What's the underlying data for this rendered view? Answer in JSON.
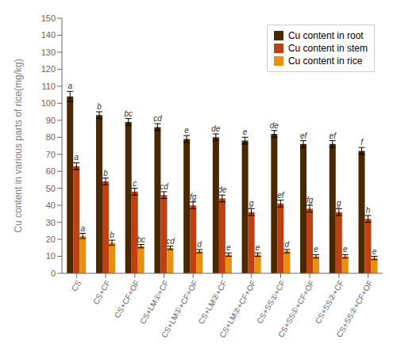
{
  "chart_data": {
    "type": "bar",
    "categories": [
      "CS",
      "CS+CF",
      "CS+CF+OF",
      "CS+LM①+CF",
      "CS+LM①+CF+OF",
      "CS+LM②+CF",
      "CS+LM②+CF+OF",
      "CS+SS①+CF",
      "CS+SS①+CF+OF",
      "CS+SS②+CF",
      "CS+SS②+CF+OF"
    ],
    "series": [
      {
        "name": "Cu content in root",
        "color": "#4a2800",
        "values": [
          104,
          93,
          89,
          86,
          79,
          80,
          78,
          82,
          76,
          76,
          72
        ],
        "errors": [
          3,
          2,
          2,
          2,
          2,
          2,
          2,
          2,
          2,
          2,
          2
        ],
        "labels": [
          "a",
          "b",
          "bc",
          "cd",
          "e",
          "de",
          "e",
          "de",
          "ef",
          "ef",
          "f"
        ]
      },
      {
        "name": "Cu content in stem",
        "color": "#bf4010",
        "values": [
          63,
          54,
          48,
          46,
          40,
          44,
          36,
          41,
          38,
          36,
          32
        ],
        "errors": [
          2,
          2,
          2,
          2,
          2,
          2,
          2,
          2,
          2,
          2,
          2
        ],
        "labels": [
          "a",
          "b",
          "c",
          "cd",
          "fg",
          "de",
          "g",
          "ef",
          "fg",
          "g",
          "h"
        ]
      },
      {
        "name": "Cu content in rice",
        "color": "#e89010",
        "values": [
          22,
          18,
          16,
          15,
          13,
          11,
          11,
          13,
          10,
          10,
          9
        ],
        "errors": [
          1.5,
          1.5,
          1,
          1,
          1,
          1,
          1,
          1,
          1,
          1,
          1
        ],
        "labels": [
          "a",
          "b",
          "bc",
          "cd",
          "d",
          "e",
          "e",
          "d",
          "e",
          "e",
          "e"
        ]
      }
    ],
    "ylabel": "Cu content in various parts of rice(mg/kg)",
    "ylim": [
      0,
      150
    ],
    "yticks": [
      0,
      10,
      20,
      30,
      40,
      50,
      60,
      70,
      80,
      90,
      100,
      110,
      120,
      130,
      140,
      150
    ],
    "grid": false,
    "legend": "upper right"
  }
}
